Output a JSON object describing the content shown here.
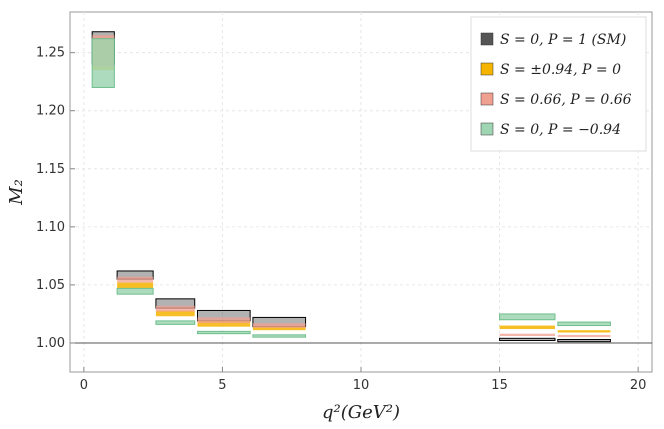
{
  "chart_data": {
    "type": "bar",
    "xlabel": "q²(GeV²)",
    "ylabel": "M₂",
    "xlim": [
      -0.5,
      20.5
    ],
    "ylim": [
      0.975,
      1.285
    ],
    "xticks": [
      0,
      5,
      10,
      15,
      20
    ],
    "yticks": [
      1.0,
      1.05,
      1.1,
      1.15,
      1.2,
      1.25
    ],
    "ytick_labels": [
      "1.00",
      "1.05",
      "1.10",
      "1.15",
      "1.20",
      "1.25"
    ],
    "reference_line": 1.0,
    "grid": true,
    "legend_position": "top-right",
    "legend": [
      {
        "key": "sm",
        "label": "S = 0, P = 1 (SM)",
        "color": "#555555"
      },
      {
        "key": "s094",
        "label": "S = ±0.94, P = 0",
        "color": "#f5b400"
      },
      {
        "key": "s066",
        "label": "S = 0.66, P = 0.66",
        "color": "#f0a090"
      },
      {
        "key": "p094",
        "label": "S = 0, P = −0.94",
        "color": "#9fd5b3"
      }
    ],
    "series": [
      {
        "key": "sm",
        "name": "S = 0, P = 1 (SM)",
        "color": "#555555",
        "outline": "#000000",
        "opacity": 0.45,
        "bins": [
          {
            "x": [
              0.3,
              1.1
            ],
            "y": [
              1.24,
              1.268
            ]
          },
          {
            "x": [
              1.2,
              2.5
            ],
            "y": [
              1.055,
              1.062
            ]
          },
          {
            "x": [
              2.6,
              4.0
            ],
            "y": [
              1.03,
              1.038
            ]
          },
          {
            "x": [
              4.1,
              6.0
            ],
            "y": [
              1.019,
              1.028
            ]
          },
          {
            "x": [
              6.1,
              8.0
            ],
            "y": [
              1.014,
              1.022
            ]
          },
          {
            "x": [
              15.0,
              17.0
            ],
            "y": [
              1.003,
              1.004
            ]
          },
          {
            "x": [
              17.1,
              19.0
            ],
            "y": [
              1.002,
              1.003
            ]
          }
        ]
      },
      {
        "key": "s094",
        "name": "S = ±0.94, P = 0",
        "color": "#f5b400",
        "outline": "none",
        "opacity": 0.85,
        "bins": [
          {
            "x": [
              0.3,
              1.1
            ],
            "y": [
              1.235,
              1.262
            ]
          },
          {
            "x": [
              1.2,
              2.5
            ],
            "y": [
              1.047,
              1.052
            ]
          },
          {
            "x": [
              2.6,
              4.0
            ],
            "y": [
              1.023,
              1.028
            ]
          },
          {
            "x": [
              4.1,
              6.0
            ],
            "y": [
              1.014,
              1.019
            ]
          },
          {
            "x": [
              6.1,
              8.0
            ],
            "y": [
              1.011,
              1.014
            ]
          },
          {
            "x": [
              15.0,
              17.0
            ],
            "y": [
              1.012,
              1.015
            ]
          },
          {
            "x": [
              17.1,
              19.0
            ],
            "y": [
              1.009,
              1.011
            ]
          }
        ]
      },
      {
        "key": "s066",
        "name": "S = 0.66, P = 0.66",
        "color": "#f0a090",
        "outline": "none",
        "opacity": 0.75,
        "bins": [
          {
            "x": [
              0.3,
              1.1
            ],
            "y": [
              1.238,
              1.265
            ]
          },
          {
            "x": [
              1.2,
              2.5
            ],
            "y": [
              1.052,
              1.057
            ]
          },
          {
            "x": [
              2.6,
              4.0
            ],
            "y": [
              1.027,
              1.032
            ]
          },
          {
            "x": [
              4.1,
              6.0
            ],
            "y": [
              1.017,
              1.022
            ]
          },
          {
            "x": [
              6.1,
              8.0
            ],
            "y": [
              1.013,
              1.017
            ]
          },
          {
            "x": [
              15.0,
              17.0
            ],
            "y": [
              1.006,
              1.008
            ]
          },
          {
            "x": [
              17.1,
              19.0
            ],
            "y": [
              1.005,
              1.007
            ]
          }
        ]
      },
      {
        "key": "p094",
        "name": "S = 0, P = −0.94",
        "color": "#9fd5b3",
        "outline": "#6fbf8e",
        "opacity": 0.85,
        "bins": [
          {
            "x": [
              0.3,
              1.1
            ],
            "y": [
              1.22,
              1.262
            ]
          },
          {
            "x": [
              1.2,
              2.5
            ],
            "y": [
              1.042,
              1.047
            ]
          },
          {
            "x": [
              2.6,
              4.0
            ],
            "y": [
              1.016,
              1.019
            ]
          },
          {
            "x": [
              4.1,
              6.0
            ],
            "y": [
              1.008,
              1.01
            ]
          },
          {
            "x": [
              6.1,
              8.0
            ],
            "y": [
              1.005,
              1.007
            ]
          },
          {
            "x": [
              15.0,
              17.0
            ],
            "y": [
              1.02,
              1.025
            ]
          },
          {
            "x": [
              17.1,
              19.0
            ],
            "y": [
              1.015,
              1.018
            ]
          }
        ]
      }
    ]
  }
}
